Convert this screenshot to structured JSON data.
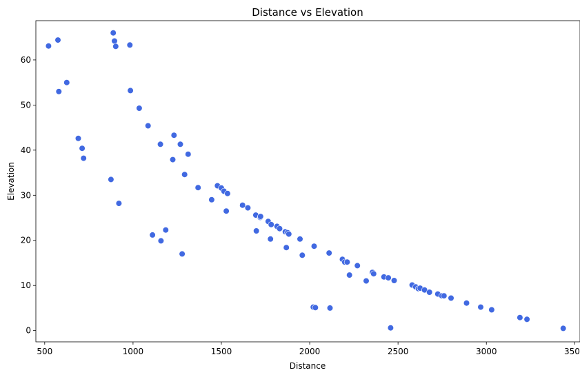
{
  "chart_data": {
    "type": "scatter",
    "title": "Distance vs Elevation",
    "xlabel": "Distance",
    "ylabel": "Elevation",
    "xlim": [
      450,
      3530
    ],
    "ylim": [
      -2.5,
      68.7
    ],
    "xticks": [
      500,
      1000,
      1500,
      2000,
      2500,
      3000,
      3500
    ],
    "yticks": [
      0,
      10,
      20,
      30,
      40,
      50,
      60
    ],
    "grid": false,
    "color": "#4169e1",
    "series": [
      {
        "points": [
          [
            522,
            63.1
          ],
          [
            575,
            64.4
          ],
          [
            580,
            53.0
          ],
          [
            625,
            55.0
          ],
          [
            690,
            42.6
          ],
          [
            712,
            40.4
          ],
          [
            720,
            38.2
          ],
          [
            875,
            33.5
          ],
          [
            888,
            66.0
          ],
          [
            895,
            64.2
          ],
          [
            902,
            63.0
          ],
          [
            920,
            28.2
          ],
          [
            982,
            63.3
          ],
          [
            985,
            53.2
          ],
          [
            1035,
            49.3
          ],
          [
            1085,
            45.4
          ],
          [
            1110,
            21.2
          ],
          [
            1155,
            41.3
          ],
          [
            1158,
            19.9
          ],
          [
            1185,
            22.3
          ],
          [
            1225,
            37.9
          ],
          [
            1232,
            43.3
          ],
          [
            1268,
            41.3
          ],
          [
            1278,
            17.0
          ],
          [
            1292,
            34.6
          ],
          [
            1312,
            39.1
          ],
          [
            1368,
            31.7
          ],
          [
            1445,
            29.0
          ],
          [
            1478,
            32.1
          ],
          [
            1500,
            31.6
          ],
          [
            1515,
            30.9
          ],
          [
            1528,
            26.5
          ],
          [
            1535,
            30.4
          ],
          [
            1620,
            27.8
          ],
          [
            1650,
            27.2
          ],
          [
            1695,
            25.6
          ],
          [
            1698,
            22.1
          ],
          [
            1720,
            25.1
          ],
          [
            1722,
            25.3
          ],
          [
            1765,
            24.2
          ],
          [
            1778,
            20.3
          ],
          [
            1782,
            23.5
          ],
          [
            1815,
            23.1
          ],
          [
            1830,
            22.6
          ],
          [
            1862,
            21.9
          ],
          [
            1868,
            18.4
          ],
          [
            1875,
            21.7
          ],
          [
            1882,
            21.4
          ],
          [
            1945,
            20.3
          ],
          [
            1958,
            16.7
          ],
          [
            2020,
            5.2
          ],
          [
            2025,
            18.7
          ],
          [
            2032,
            5.1
          ],
          [
            2110,
            17.2
          ],
          [
            2115,
            5.0
          ],
          [
            2185,
            15.8
          ],
          [
            2198,
            15.2
          ],
          [
            2212,
            15.2
          ],
          [
            2225,
            12.3
          ],
          [
            2270,
            14.4
          ],
          [
            2320,
            11.0
          ],
          [
            2355,
            12.9
          ],
          [
            2362,
            12.6
          ],
          [
            2420,
            11.9
          ],
          [
            2445,
            11.7
          ],
          [
            2458,
            0.6
          ],
          [
            2478,
            11.1
          ],
          [
            2580,
            10.1
          ],
          [
            2600,
            9.7
          ],
          [
            2615,
            9.3
          ],
          [
            2625,
            9.4
          ],
          [
            2650,
            9.0
          ],
          [
            2678,
            8.5
          ],
          [
            2725,
            8.1
          ],
          [
            2748,
            7.7
          ],
          [
            2760,
            7.7
          ],
          [
            2800,
            7.2
          ],
          [
            2888,
            6.1
          ],
          [
            2968,
            5.2
          ],
          [
            3030,
            4.6
          ],
          [
            3190,
            2.9
          ],
          [
            3230,
            2.5
          ],
          [
            3435,
            0.5
          ]
        ]
      }
    ]
  }
}
